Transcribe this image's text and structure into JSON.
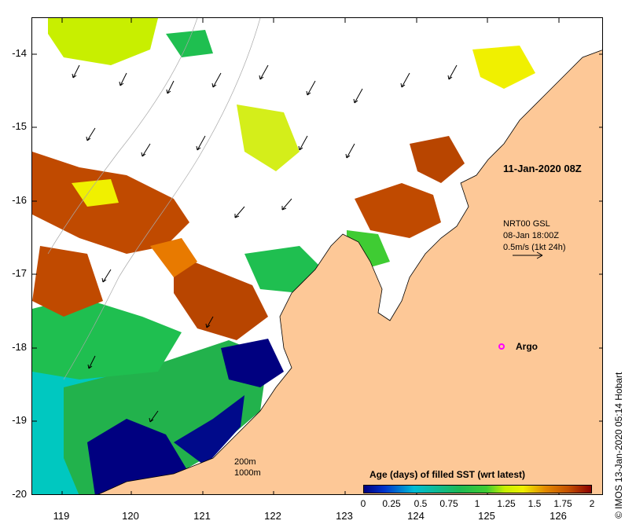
{
  "map": {
    "timestamp": "11-Jan-2020 08Z",
    "vector_source": "NRT00 GSL",
    "vector_time": "08-Jan 18:00Z",
    "vector_scale": "0.5m/s (1kt 24h)",
    "argo_label": "Argo",
    "contours": [
      "200m",
      "1000m"
    ],
    "y_ticks": [
      "-14",
      "-15",
      "-16",
      "-17",
      "-18",
      "-19",
      "-20"
    ],
    "x_ticks": [
      "119",
      "120",
      "121",
      "122",
      "123",
      "124",
      "125",
      "126"
    ],
    "credit": "© IMOS 13-Jan-2020 05:14 Hobart",
    "land_color": "#fdc897",
    "argo_color": "#ff00ff"
  },
  "colorbar": {
    "title": "Age (days) of filled SST (wrt latest)",
    "ticks": [
      "0",
      "0.25",
      "0.5",
      "0.75",
      "1",
      "1.25",
      "1.5",
      "1.75",
      "2"
    ]
  }
}
